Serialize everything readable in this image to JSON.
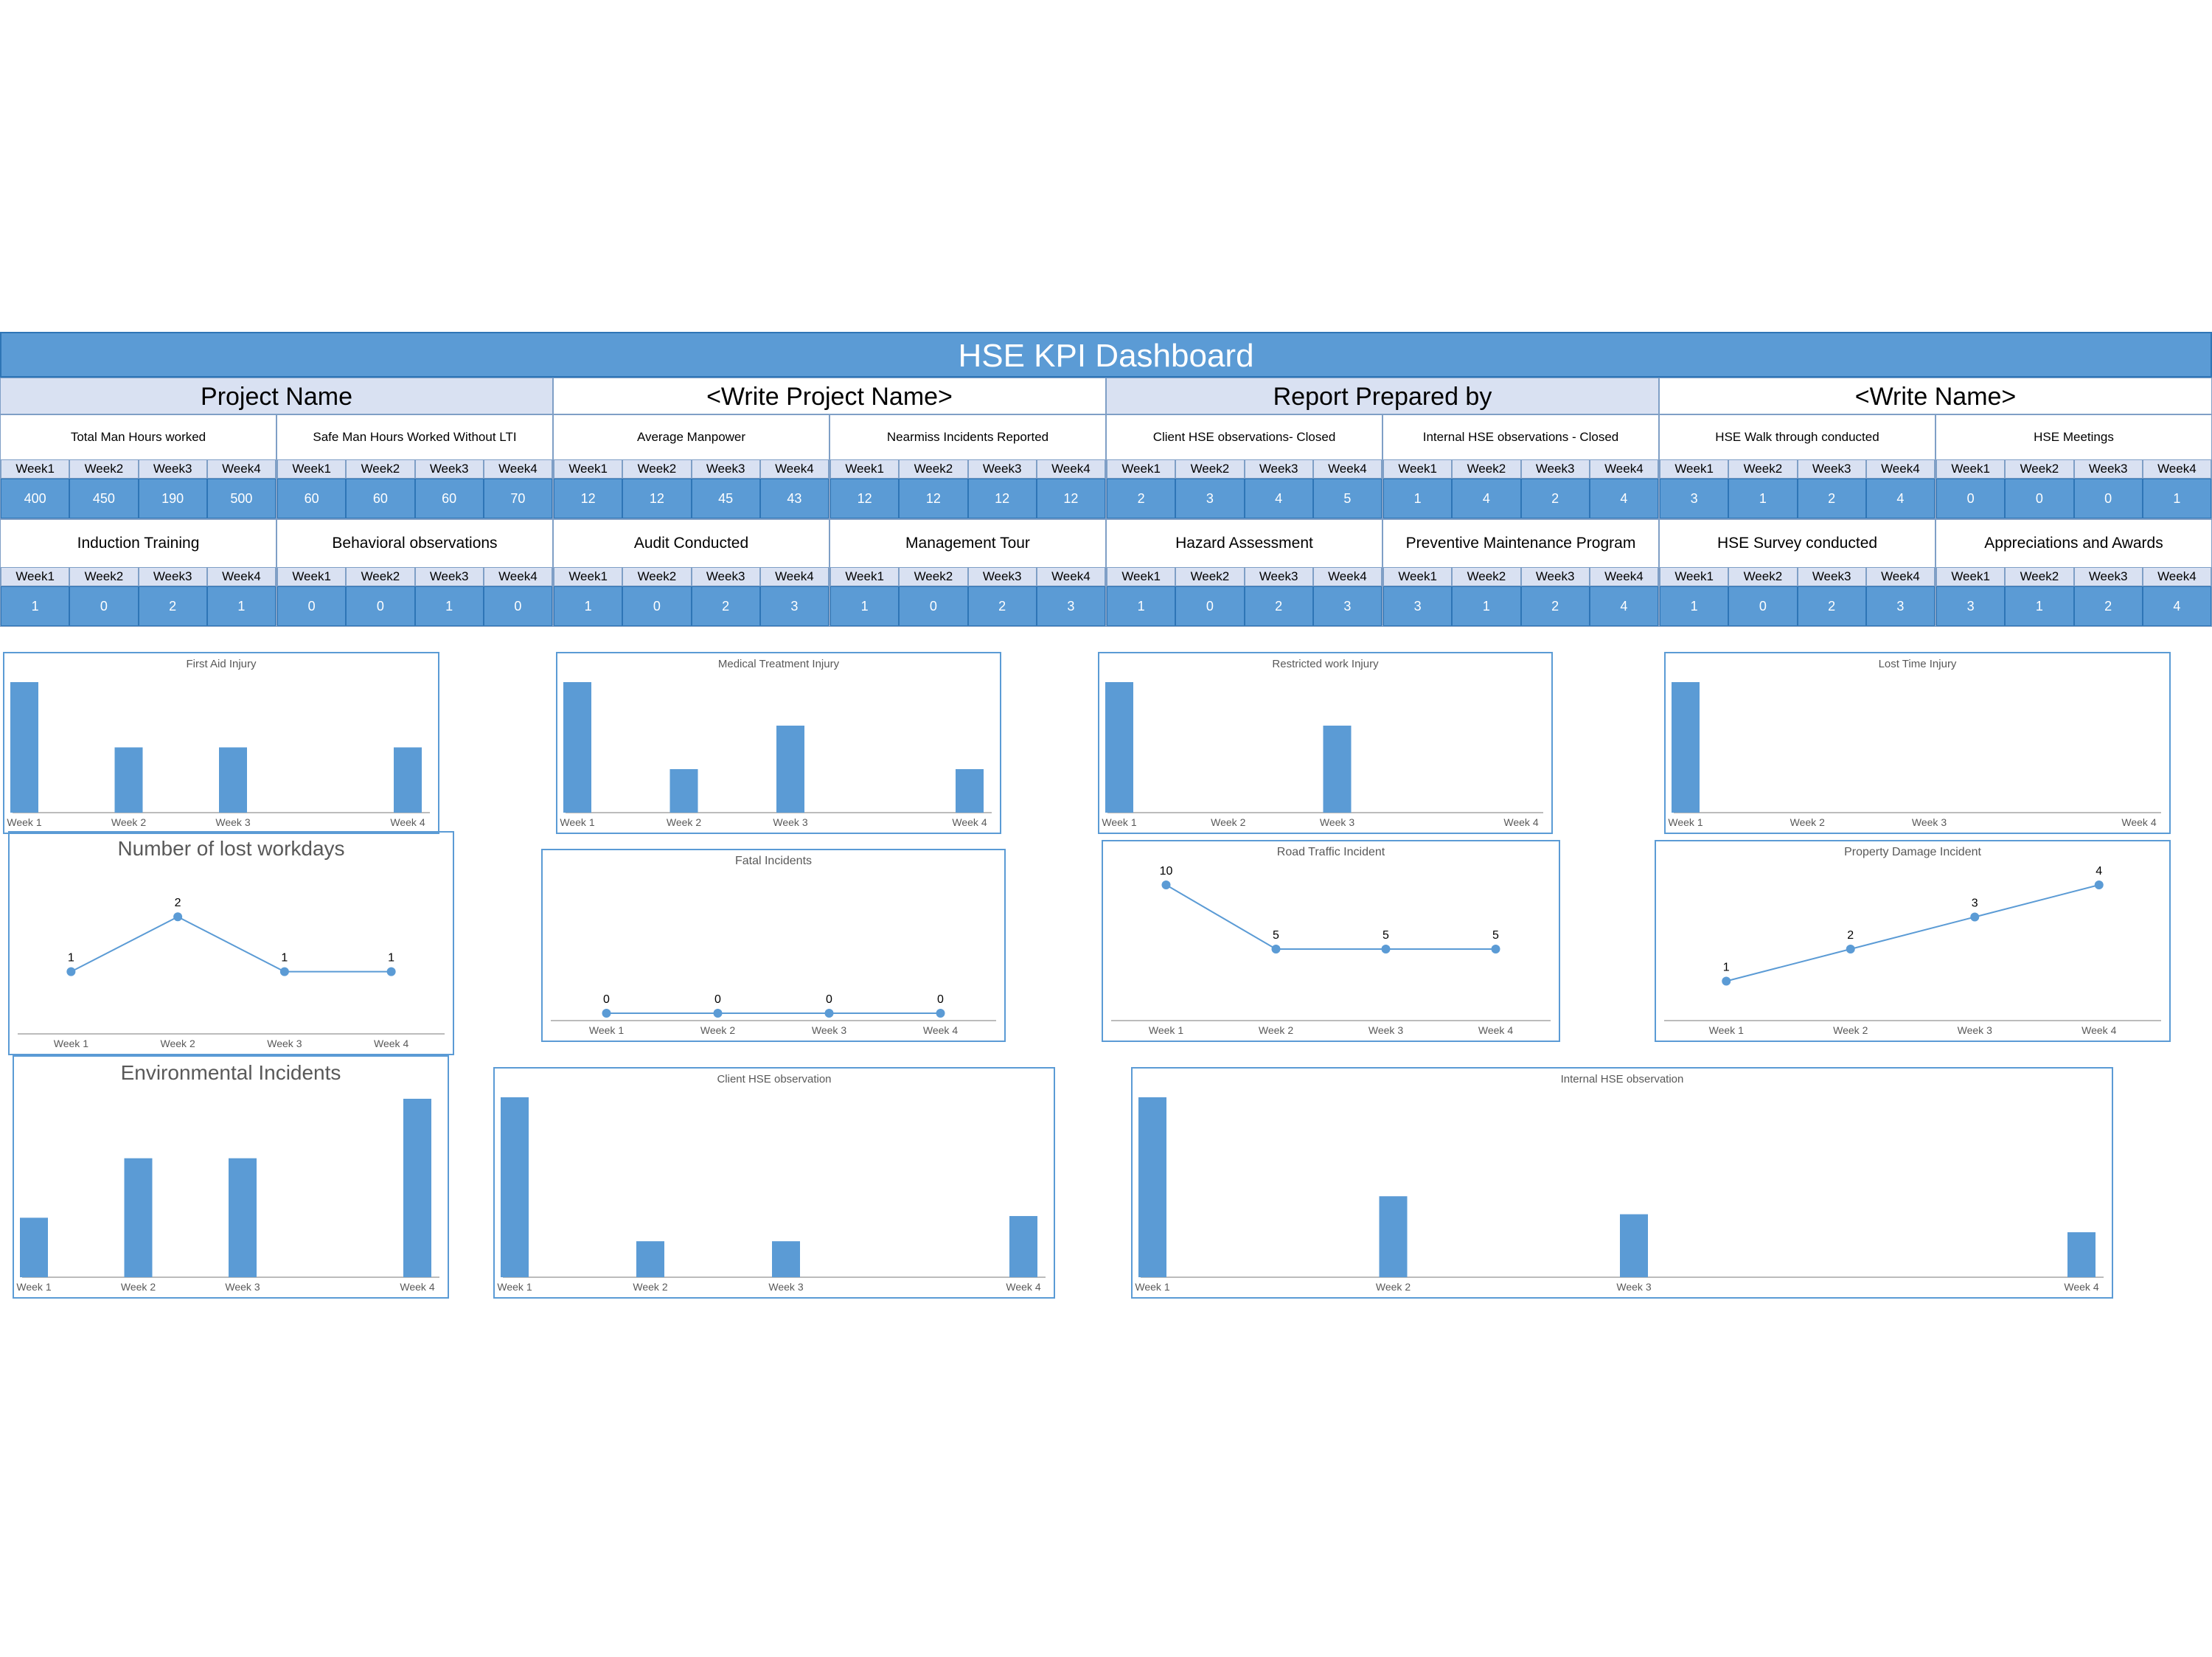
{
  "dashboard": {
    "title": "HSE KPI Dashboard",
    "info": {
      "project_label": "Project Name",
      "project_value": "<Write Project Name>",
      "prepared_label": "Report Prepared by",
      "prepared_value": "<Write Name>"
    },
    "kpi_rows": [
      [
        {
          "title": "Total Man Hours worked",
          "weeks": [
            "Week1",
            "Week2",
            "Week3",
            "Week4"
          ],
          "values": [
            "400",
            "450",
            "190",
            "500"
          ]
        },
        {
          "title": "Safe Man Hours Worked Without LTI",
          "weeks": [
            "Week1",
            "Week2",
            "Week3",
            "Week4"
          ],
          "values": [
            "60",
            "60",
            "60",
            "70"
          ]
        },
        {
          "title": "Average Manpower",
          "weeks": [
            "Week1",
            "Week2",
            "Week3",
            "Week4"
          ],
          "values": [
            "12",
            "12",
            "45",
            "43"
          ]
        },
        {
          "title": "Nearmiss Incidents Reported",
          "weeks": [
            "Week1",
            "Week2",
            "Week3",
            "Week4"
          ],
          "values": [
            "12",
            "12",
            "12",
            "12"
          ]
        },
        {
          "title": "Client HSE observations- Closed",
          "weeks": [
            "Week1",
            "Week2",
            "Week3",
            "Week4"
          ],
          "values": [
            "2",
            "3",
            "4",
            "5"
          ]
        },
        {
          "title": "Internal HSE observations - Closed",
          "weeks": [
            "Week1",
            "Week2",
            "Week3",
            "Week4"
          ],
          "values": [
            "1",
            "4",
            "2",
            "4"
          ]
        },
        {
          "title": "HSE Walk through conducted",
          "weeks": [
            "Week1",
            "Week2",
            "Week3",
            "Week4"
          ],
          "values": [
            "3",
            "1",
            "2",
            "4"
          ]
        },
        {
          "title": "HSE Meetings",
          "weeks": [
            "Week1",
            "Week2",
            "Week3",
            "Week4"
          ],
          "values": [
            "0",
            "0",
            "0",
            "1"
          ]
        }
      ],
      [
        {
          "title": "Induction Training",
          "weeks": [
            "Week1",
            "Week2",
            "Week3",
            "Week4"
          ],
          "values": [
            "1",
            "0",
            "2",
            "1"
          ]
        },
        {
          "title": "Behavioral observations",
          "weeks": [
            "Week1",
            "Week2",
            "Week3",
            "Week4"
          ],
          "values": [
            "0",
            "0",
            "1",
            "0"
          ]
        },
        {
          "title": "Audit Conducted",
          "weeks": [
            "Week1",
            "Week2",
            "Week3",
            "Week4"
          ],
          "values": [
            "1",
            "0",
            "2",
            "3"
          ]
        },
        {
          "title": "Management Tour",
          "weeks": [
            "Week1",
            "Week2",
            "Week3",
            "Week4"
          ],
          "values": [
            "1",
            "0",
            "2",
            "3"
          ]
        },
        {
          "title": "Hazard Assessment",
          "weeks": [
            "Week1",
            "Week2",
            "Week3",
            "Week4"
          ],
          "values": [
            "1",
            "0",
            "2",
            "3"
          ]
        },
        {
          "title": "Preventive Maintenance Program",
          "weeks": [
            "Week1",
            "Week2",
            "Week3",
            "Week4"
          ],
          "values": [
            "3",
            "1",
            "2",
            "4"
          ]
        },
        {
          "title": "HSE Survey conducted",
          "weeks": [
            "Week1",
            "Week2",
            "Week3",
            "Week4"
          ],
          "values": [
            "1",
            "0",
            "2",
            "3"
          ]
        },
        {
          "title": "Appreciations and Awards",
          "weeks": [
            "Week1",
            "Week2",
            "Week3",
            "Week4"
          ],
          "values": [
            "3",
            "1",
            "2",
            "4"
          ]
        }
      ]
    ]
  },
  "colors": {
    "accent": "#5b9bd5",
    "header_light": "#d9e1f2",
    "border": "#2e75b6"
  },
  "chart_data": [
    {
      "type": "bar",
      "title": "First Aid Injury",
      "categories": [
        "Week 1",
        "Week 2",
        "Week 3",
        "Week 4"
      ],
      "values": [
        2,
        1,
        1,
        1
      ],
      "ylim": [
        0,
        2
      ]
    },
    {
      "type": "bar",
      "title": "Medical Treatment Injury",
      "categories": [
        "Week 1",
        "Week 2",
        "Week 3",
        "Week 4"
      ],
      "values": [
        3,
        1,
        2,
        1
      ],
      "ylim": [
        0,
        3
      ]
    },
    {
      "type": "bar",
      "title": "Restricted work Injury",
      "categories": [
        "Week 1",
        "Week 2",
        "Week 3",
        "Week 4"
      ],
      "values": [
        3,
        0,
        2,
        0
      ],
      "ylim": [
        0,
        3
      ]
    },
    {
      "type": "bar",
      "title": "Lost Time Injury",
      "categories": [
        "Week 1",
        "Week 2",
        "Week 3",
        "Week 4"
      ],
      "values": [
        1,
        0,
        0,
        0
      ],
      "ylim": [
        0,
        1
      ]
    },
    {
      "type": "line",
      "title": "Number of lost workdays",
      "categories": [
        "Week 1",
        "Week 2",
        "Week 3",
        "Week 4"
      ],
      "values": [
        1,
        2,
        1,
        1
      ],
      "data_labels": [
        "1",
        "2",
        "1",
        "1"
      ],
      "ylim": [
        0,
        2.5
      ]
    },
    {
      "type": "line",
      "title": "Fatal Incidents",
      "categories": [
        "Week 1",
        "Week 2",
        "Week 3",
        "Week 4"
      ],
      "values": [
        0,
        0,
        0,
        0
      ],
      "data_labels": [
        "0",
        "0",
        "0",
        "0"
      ],
      "ylim": [
        0,
        1
      ]
    },
    {
      "type": "line",
      "title": "Road Traffic Incident",
      "categories": [
        "Week 1",
        "Week 2",
        "Week 3",
        "Week 4"
      ],
      "values": [
        10,
        5,
        5,
        5
      ],
      "data_labels": [
        "10",
        "5",
        "5",
        "5"
      ],
      "ylim": [
        0,
        10
      ]
    },
    {
      "type": "line",
      "title": "Property Damage Incident",
      "categories": [
        "Week 1",
        "Week 2",
        "Week 3",
        "Week 4"
      ],
      "values": [
        1,
        2,
        3,
        4
      ],
      "data_labels": [
        "1",
        "2",
        "3",
        "4"
      ],
      "ylim": [
        0,
        4
      ]
    },
    {
      "type": "bar",
      "title": "Environmental Incidents",
      "categories": [
        "Week 1",
        "Week 2",
        "Week 3",
        "Week 4"
      ],
      "values": [
        1,
        2,
        2,
        3
      ],
      "ylim": [
        0,
        3
      ]
    },
    {
      "type": "bar",
      "title": "Client HSE observation",
      "categories": [
        "Week 1",
        "Week 2",
        "Week 3",
        "Week 4"
      ],
      "values": [
        5,
        1,
        1,
        1.7
      ],
      "ylim": [
        0,
        5
      ]
    },
    {
      "type": "bar",
      "title": "Internal HSE observation",
      "categories": [
        "Week 1",
        "Week 2",
        "Week 3",
        "Week 4"
      ],
      "values": [
        4,
        1.8,
        1.4,
        1
      ],
      "ylim": [
        0,
        4
      ]
    }
  ]
}
